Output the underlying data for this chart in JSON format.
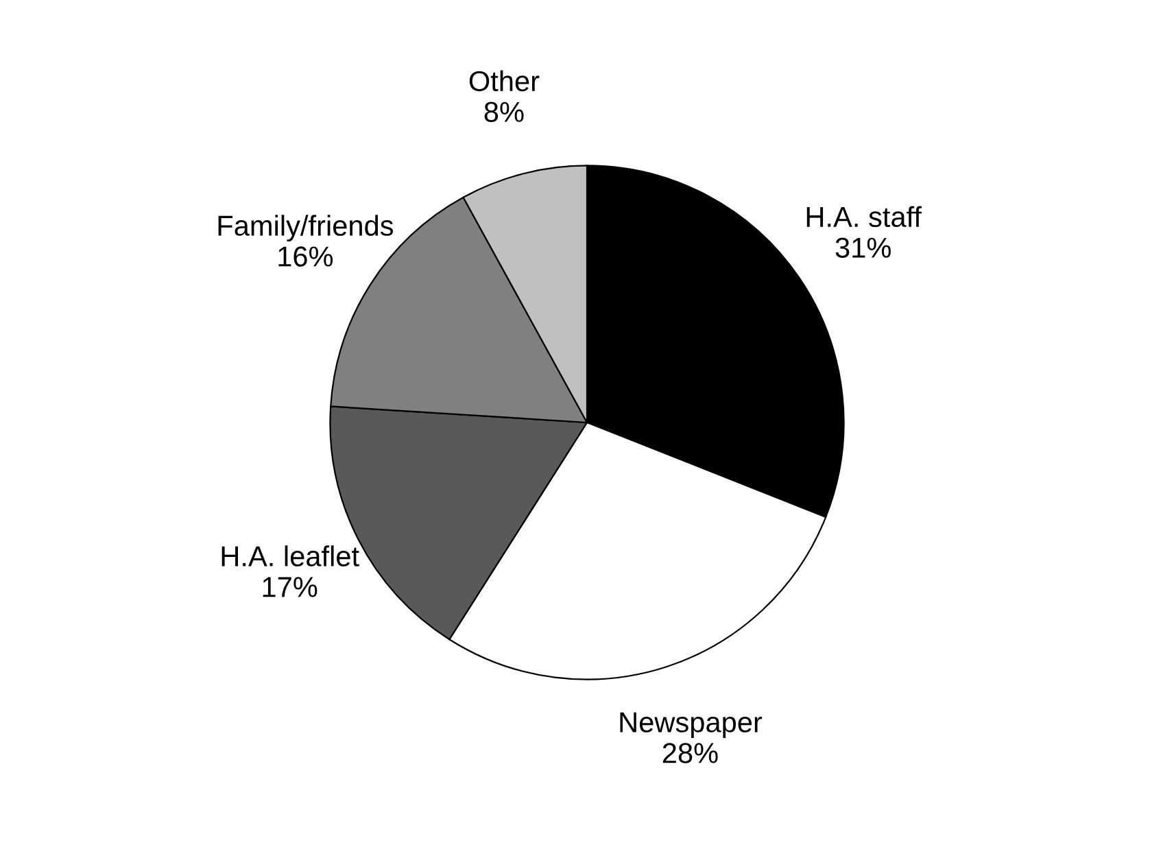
{
  "chart_data": {
    "type": "pie",
    "categories": [
      "H.A. staff",
      "Newspaper",
      "H.A. leaflet",
      "Family/friends",
      "Other"
    ],
    "values": [
      31,
      28,
      17,
      16,
      8
    ],
    "value_labels": [
      "31%",
      "28%",
      "17%",
      "16%",
      "8%"
    ],
    "colors": [
      "#000000",
      "#ffffff",
      "#595959",
      "#808080",
      "#c0c0c0"
    ]
  }
}
